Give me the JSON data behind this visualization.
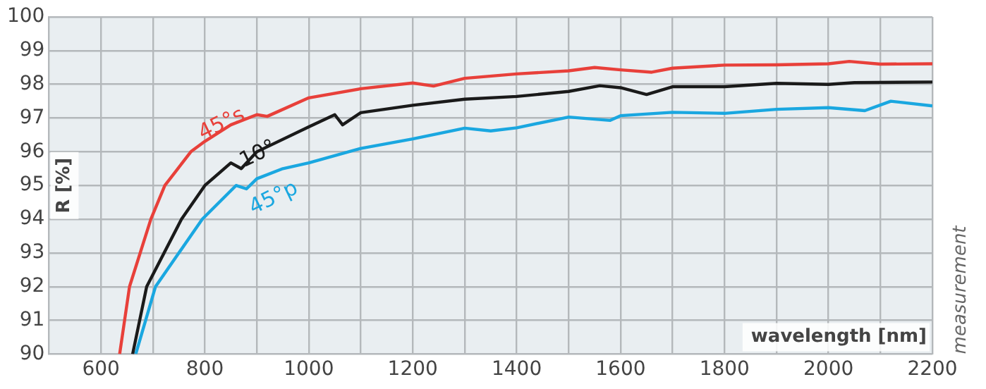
{
  "chart_data": {
    "type": "line",
    "xlabel": "wavelength [nm]",
    "ylabel": "R [%]",
    "annotations": [
      "measurement"
    ],
    "xlim": [
      500,
      2200
    ],
    "ylim": [
      90,
      100
    ],
    "xticks": [
      {
        "value": 500,
        "label": null
      },
      600,
      {
        "value": 700,
        "label": null
      },
      800,
      {
        "value": 900,
        "label": null
      },
      1000,
      {
        "value": 1100,
        "label": null
      },
      1200,
      {
        "value": 1300,
        "label": null
      },
      1400,
      {
        "value": 1500,
        "label": null
      },
      1600,
      {
        "value": 1700,
        "label": null
      },
      1800,
      {
        "value": 1900,
        "label": null
      },
      2000,
      {
        "value": 2100,
        "label": null
      },
      2200
    ],
    "yticks": [
      90,
      91,
      92,
      93,
      94,
      95,
      96,
      97,
      98,
      99,
      100
    ],
    "grid": true,
    "legend": false,
    "marker": "none",
    "line_style": "solid",
    "series": [
      {
        "name": "45°s",
        "color": "#e8403a",
        "x": [
          636,
          655,
          696,
          723,
          773,
          800,
          850,
          900,
          920,
          1000,
          1100,
          1200,
          1240,
          1300,
          1400,
          1500,
          1550,
          1600,
          1660,
          1700,
          1800,
          1900,
          2000,
          2040,
          2100,
          2200
        ],
        "values": [
          90,
          92,
          94,
          95,
          96,
          96.31,
          96.8,
          97.1,
          97.05,
          97.6,
          97.87,
          98.04,
          97.95,
          98.18,
          98.31,
          98.4,
          98.5,
          98.43,
          98.36,
          98.48,
          98.57,
          98.58,
          98.61,
          98.68,
          98.6,
          98.61
        ]
      },
      {
        "name": "10°",
        "color": "#1a1a1a",
        "x": [
          661,
          688,
          755,
          800,
          850,
          870,
          900,
          1000,
          1050,
          1065,
          1100,
          1200,
          1300,
          1400,
          1500,
          1560,
          1600,
          1650,
          1700,
          1800,
          1900,
          2000,
          2050,
          2200
        ],
        "values": [
          90,
          92,
          94,
          95,
          95.67,
          95.5,
          96,
          96.74,
          97.1,
          96.8,
          97.16,
          97.38,
          97.56,
          97.64,
          97.79,
          97.96,
          97.9,
          97.7,
          97.93,
          97.93,
          98.03,
          98,
          98.05,
          98.07
        ]
      },
      {
        "name": "45°p",
        "color": "#1aa7e0",
        "x": [
          667,
          705,
          795,
          860,
          880,
          900,
          950,
          1000,
          1100,
          1200,
          1300,
          1350,
          1400,
          1500,
          1580,
          1600,
          1700,
          1800,
          1900,
          2000,
          2070,
          2120,
          2200
        ],
        "values": [
          90,
          92,
          94,
          95,
          94.9,
          95.2,
          95.5,
          95.67,
          96.1,
          96.38,
          96.7,
          96.62,
          96.71,
          97.03,
          96.93,
          97.07,
          97.17,
          97.14,
          97.26,
          97.31,
          97.22,
          97.5,
          97.36
        ]
      }
    ]
  }
}
